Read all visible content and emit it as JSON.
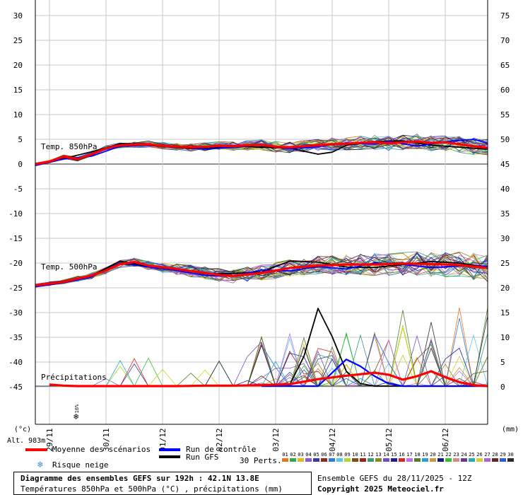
{
  "chart_data": {
    "type": "line",
    "y_left_ticks": [
      "30",
      "25",
      "20",
      "15",
      "10",
      "5",
      "0",
      "-5",
      "-10",
      "-15",
      "-20",
      "-25",
      "-30",
      "-35",
      "-40",
      "-45"
    ],
    "y_right_ticks": [
      "75",
      "70",
      "65",
      "60",
      "55",
      "50",
      "45",
      "40",
      "35",
      "30",
      "25",
      "20",
      "15",
      "10",
      "5",
      "0"
    ],
    "y_left_unit": "(°c)",
    "y_right_unit": "(mm)",
    "x_ticks": [
      "29/11",
      "30/11",
      "01/12",
      "02/12",
      "03/12",
      "04/12",
      "05/12",
      "06/12"
    ],
    "altitude_label": "Alt. 983m",
    "panel_labels": {
      "t850": "Temp. 850hPa",
      "t500": "Temp. 500hPa",
      "precip": "Précipitations"
    },
    "snow_risk_label": "16%",
    "x_steps": [
      0,
      192
    ],
    "t850_mean": [
      [
        0,
        0.0
      ],
      [
        6,
        0.5
      ],
      [
        12,
        1.5
      ],
      [
        18,
        1.0
      ],
      [
        24,
        2.0
      ],
      [
        30,
        3.2
      ],
      [
        36,
        3.8
      ],
      [
        42,
        3.9
      ],
      [
        48,
        4.0
      ],
      [
        54,
        3.7
      ],
      [
        60,
        3.5
      ],
      [
        66,
        3.4
      ],
      [
        72,
        3.5
      ],
      [
        78,
        3.7
      ],
      [
        84,
        3.6
      ],
      [
        90,
        3.8
      ],
      [
        96,
        3.9
      ],
      [
        102,
        3.5
      ],
      [
        108,
        3.4
      ],
      [
        114,
        3.6
      ],
      [
        120,
        3.8
      ],
      [
        126,
        4.0
      ],
      [
        132,
        4.1
      ],
      [
        138,
        4.3
      ],
      [
        144,
        4.4
      ],
      [
        150,
        4.2
      ],
      [
        156,
        4.4
      ],
      [
        162,
        4.5
      ],
      [
        168,
        4.3
      ],
      [
        174,
        4.4
      ],
      [
        180,
        4.0
      ],
      [
        186,
        3.6
      ],
      [
        192,
        3.3
      ]
    ],
    "t850_control": [
      [
        0,
        -0.3
      ],
      [
        12,
        1.0
      ],
      [
        24,
        1.6
      ],
      [
        36,
        3.6
      ],
      [
        48,
        3.8
      ],
      [
        60,
        3.6
      ],
      [
        72,
        3.0
      ],
      [
        84,
        3.4
      ],
      [
        96,
        3.9
      ],
      [
        108,
        3.1
      ],
      [
        120,
        3.5
      ],
      [
        132,
        4.3
      ],
      [
        144,
        4.0
      ],
      [
        150,
        4.6
      ],
      [
        162,
        3.6
      ],
      [
        174,
        4.5
      ],
      [
        186,
        5.0
      ],
      [
        192,
        4.2
      ]
    ],
    "t850_gfs": [
      [
        0,
        -0.2
      ],
      [
        12,
        1.1
      ],
      [
        24,
        2.5
      ],
      [
        36,
        4.1
      ],
      [
        48,
        3.8
      ],
      [
        60,
        3.3
      ],
      [
        72,
        3.1
      ],
      [
        84,
        3.7
      ],
      [
        96,
        3.4
      ],
      [
        108,
        3.2
      ],
      [
        120,
        2.0
      ],
      [
        126,
        2.4
      ],
      [
        132,
        3.8
      ],
      [
        144,
        4.5
      ],
      [
        156,
        4.7
      ],
      [
        168,
        3.8
      ],
      [
        180,
        3.4
      ],
      [
        192,
        3.0
      ]
    ],
    "t500_mean": [
      [
        0,
        -24.5
      ],
      [
        12,
        -23.8
      ],
      [
        24,
        -22.5
      ],
      [
        30,
        -21.5
      ],
      [
        36,
        -20.2
      ],
      [
        42,
        -19.8
      ],
      [
        48,
        -20.5
      ],
      [
        60,
        -21.2
      ],
      [
        72,
        -22.0
      ],
      [
        78,
        -22.4
      ],
      [
        84,
        -22.6
      ],
      [
        96,
        -22.0
      ],
      [
        108,
        -21.0
      ],
      [
        120,
        -20.5
      ],
      [
        132,
        -20.3
      ],
      [
        144,
        -20.3
      ],
      [
        156,
        -20.1
      ],
      [
        168,
        -20.2
      ],
      [
        180,
        -20.4
      ],
      [
        192,
        -21.0
      ]
    ],
    "t500_control": [
      [
        0,
        -24.8
      ],
      [
        12,
        -24.0
      ],
      [
        24,
        -22.8
      ],
      [
        36,
        -20.0
      ],
      [
        48,
        -20.8
      ],
      [
        60,
        -21.5
      ],
      [
        72,
        -22.5
      ],
      [
        84,
        -22.7
      ],
      [
        96,
        -21.4
      ],
      [
        108,
        -21.6
      ],
      [
        120,
        -20.7
      ],
      [
        132,
        -21.2
      ],
      [
        144,
        -20.0
      ],
      [
        156,
        -20.3
      ],
      [
        168,
        -20.9
      ],
      [
        180,
        -20.6
      ],
      [
        192,
        -20.6
      ]
    ],
    "t500_gfs": [
      [
        0,
        -24.6
      ],
      [
        12,
        -23.9
      ],
      [
        24,
        -22.5
      ],
      [
        36,
        -19.6
      ],
      [
        48,
        -20.7
      ],
      [
        60,
        -21.2
      ],
      [
        72,
        -22.2
      ],
      [
        84,
        -22.1
      ],
      [
        96,
        -21.8
      ],
      [
        108,
        -19.6
      ],
      [
        120,
        -19.8
      ],
      [
        132,
        -20.8
      ],
      [
        144,
        -20.9
      ],
      [
        156,
        -20.3
      ],
      [
        168,
        -19.7
      ],
      [
        180,
        -20.0
      ],
      [
        192,
        -20.8
      ]
    ],
    "precip_mean_mm": [
      [
        6,
        0.3
      ],
      [
        12,
        0.1
      ],
      [
        18,
        0
      ],
      [
        60,
        0
      ],
      [
        72,
        0.1
      ],
      [
        84,
        0.1
      ],
      [
        96,
        0.2
      ],
      [
        108,
        0.4
      ],
      [
        120,
        1.4
      ],
      [
        132,
        2.1
      ],
      [
        144,
        2.7
      ],
      [
        150,
        2.3
      ],
      [
        156,
        1.3
      ],
      [
        162,
        2.0
      ],
      [
        168,
        3.0
      ],
      [
        174,
        1.8
      ],
      [
        180,
        0.8
      ],
      [
        186,
        0.2
      ],
      [
        192,
        0
      ]
    ],
    "precip_control_mm": [
      [
        96,
        0
      ],
      [
        120,
        0
      ],
      [
        132,
        5.4
      ],
      [
        138,
        4.0
      ],
      [
        144,
        2.0
      ],
      [
        150,
        0.5
      ],
      [
        156,
        0
      ],
      [
        192,
        0
      ]
    ],
    "precip_gfs_mm": [
      [
        96,
        0
      ],
      [
        108,
        0.3
      ],
      [
        114,
        6.0
      ],
      [
        120,
        15.7
      ],
      [
        126,
        10.0
      ],
      [
        132,
        3.0
      ],
      [
        138,
        0.5
      ],
      [
        144,
        0
      ],
      [
        192,
        0
      ]
    ],
    "colors": {
      "mean": "#ff0000",
      "control": "#0000ff",
      "gfs": "#000000",
      "grid": "#c8c8c8"
    },
    "perturbation_colors": [
      "#e8741f",
      "#2fa84f",
      "#d6c21d",
      "#8d5ac9",
      "#3b3b9a",
      "#8a2a18",
      "#2b7bd8",
      "#57c9e8",
      "#b0d636",
      "#7c4f0a",
      "#a31d1d",
      "#3a9a7a",
      "#8a8a20",
      "#7050c0",
      "#1f1f9a",
      "#d22a2a",
      "#c070e0",
      "#4f7f2f",
      "#2a9fd6",
      "#c89a3a",
      "#1a1a7a",
      "#33c033",
      "#d88a8a",
      "#6a3a8a",
      "#25a8b8",
      "#d4d028",
      "#b060d0",
      "#5a2a2a",
      "#2c5ad8",
      "#2b2b2b"
    ]
  },
  "legend": {
    "mean": "Moyenne des scénarios",
    "control": "Run de contrôle",
    "gfs": "Run GFS",
    "snow": "Risque neige",
    "perts_label": "30 Perts.",
    "pert_numbers": [
      "01",
      "02",
      "03",
      "04",
      "05",
      "06",
      "07",
      "08",
      "09",
      "10",
      "11",
      "12",
      "13",
      "14",
      "15",
      "16",
      "17",
      "18",
      "19",
      "20",
      "21",
      "22",
      "23",
      "24",
      "25",
      "26",
      "27",
      "28",
      "29",
      "30"
    ]
  },
  "footer": {
    "title": "Diagramme des ensembles GEFS sur 192h : 42.1N 13.8E",
    "subtitle": "Températures 850hPa et 500hPa (°C) , précipitations (mm)",
    "run_info": "Ensemble GEFS du 28/11/2025 - 12Z",
    "copyright": "Copyright 2025 Meteociel.fr"
  }
}
